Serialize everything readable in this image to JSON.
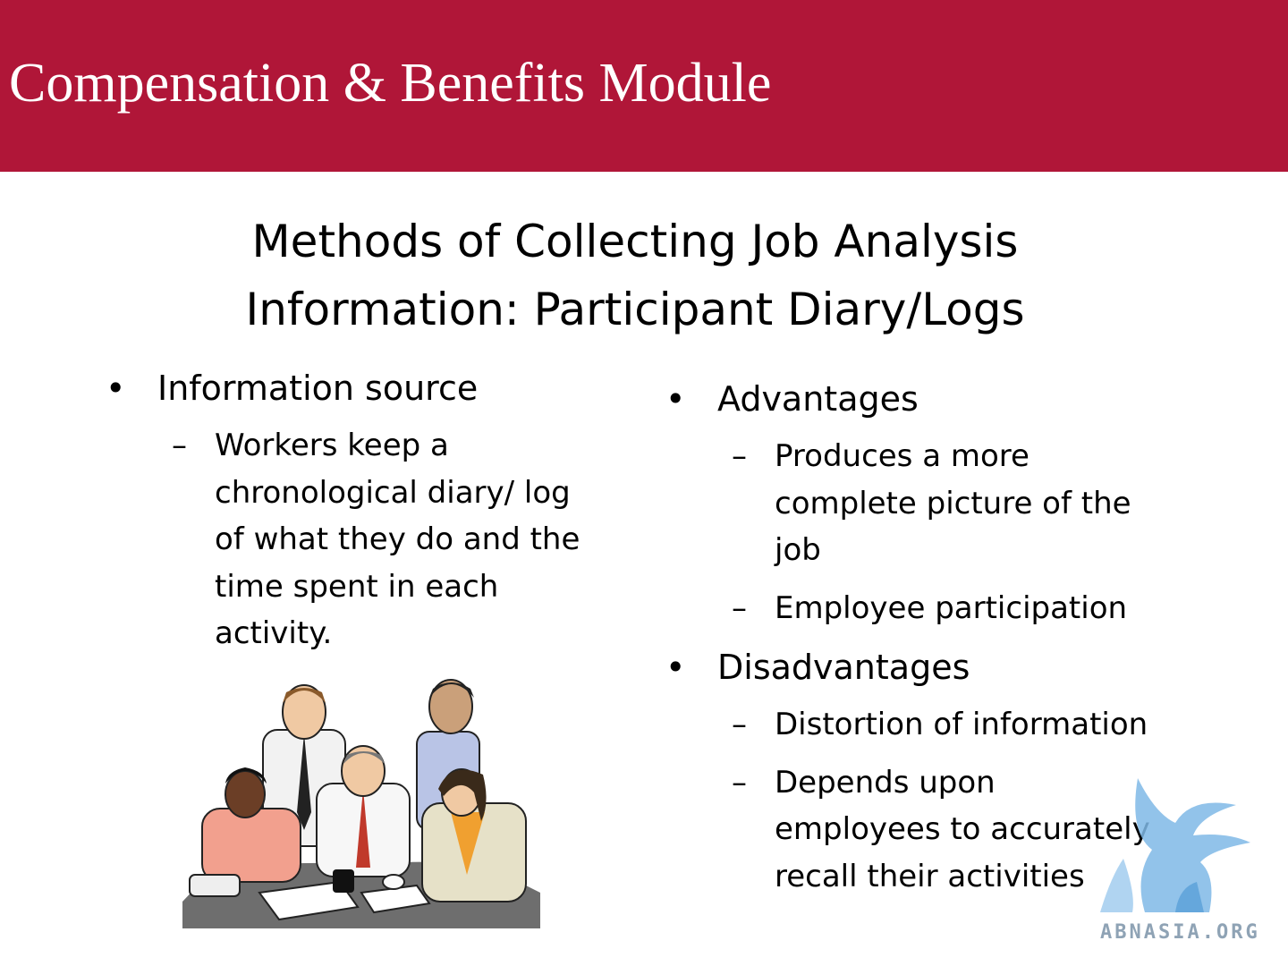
{
  "header": {
    "title": "Compensation & Benefits Module"
  },
  "slide": {
    "title_line1": "Methods of Collecting Job Analysis",
    "title_line2": "Information: Participant Diary/Logs"
  },
  "left": {
    "bullet": "Information source",
    "sub_lines": [
      "Workers keep a",
      "chronological diary/ log",
      "of what they do and the",
      "time spent in each",
      "activity."
    ]
  },
  "right": {
    "advantages": {
      "label": "Advantages",
      "items": [
        {
          "lines": [
            "Produces a more",
            "complete picture of the",
            "job"
          ]
        },
        {
          "lines": [
            "Employee participation"
          ]
        }
      ]
    },
    "disadvantages": {
      "label": "Disadvantages",
      "items": [
        {
          "lines": [
            "Distortion of information"
          ]
        },
        {
          "lines": [
            "Depends upon",
            "employees to accurately",
            "recall their activities"
          ]
        }
      ]
    }
  },
  "marks": {
    "bullet": "•",
    "dash": "–"
  },
  "watermark": {
    "text": "ABNASIA.ORG"
  },
  "colors": {
    "header_bg": "#b01638",
    "header_text": "#ffffff",
    "watermark": "#7fb8e6"
  },
  "icons": {
    "illustration": "team-meeting-clipart-icon",
    "watermark": "griffin-logo-icon"
  }
}
